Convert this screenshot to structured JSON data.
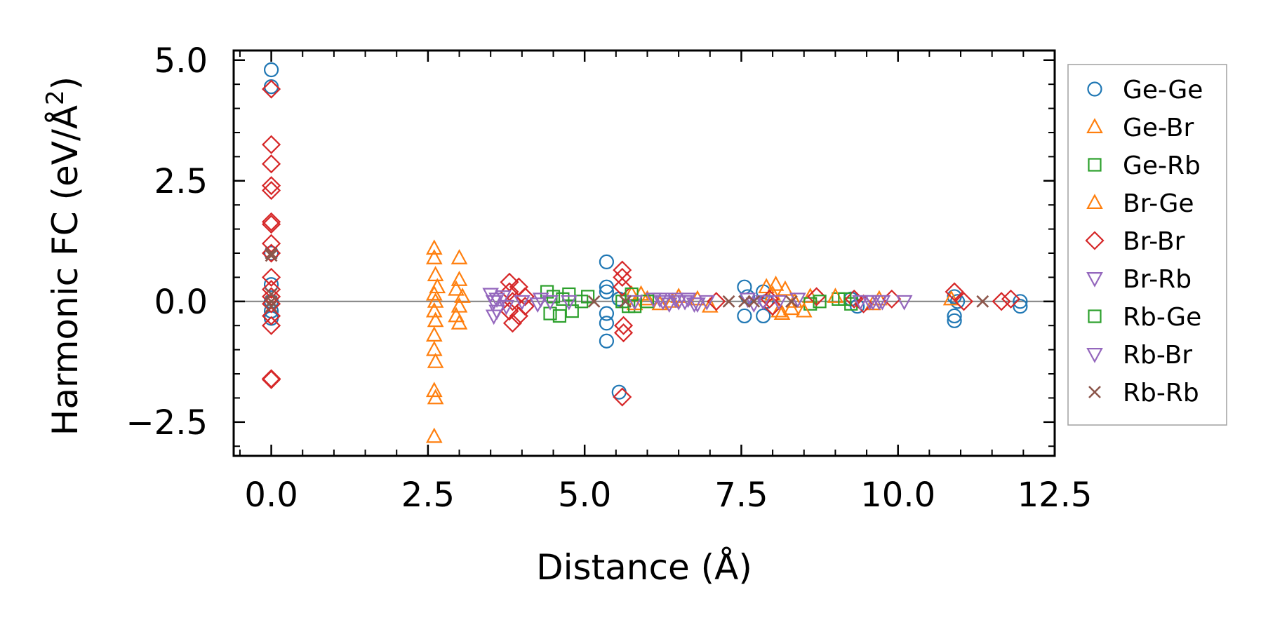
{
  "chart_data": {
    "type": "scatter",
    "xlabel": "Distance (Å)",
    "ylabel": "Harmonic FC (eV/Å²)",
    "xlabel_text": "Distance (Å)",
    "ylabel_main": "Harmonic FC (eV/Å",
    "ylabel_sup": "2",
    "ylabel_close": ")",
    "xlim": [
      -0.6,
      12.5
    ],
    "ylim": [
      -3.2,
      5.2
    ],
    "xticks": [
      0.0,
      2.5,
      5.0,
      7.5,
      10.0,
      12.5
    ],
    "xtick_labels": [
      "0.0",
      "2.5",
      "5.0",
      "7.5",
      "10.0",
      "12.5"
    ],
    "yticks": [
      -2.5,
      0.0,
      2.5,
      5.0
    ],
    "ytick_labels": [
      "−2.5",
      "0.0",
      "2.5",
      "5.0"
    ],
    "zero_line": 0,
    "legend_position": "right",
    "series": [
      {
        "name": "Ge-Ge",
        "marker": "circle",
        "color": "#1f77b4",
        "points": [
          [
            0,
            4.8
          ],
          [
            0,
            4.45
          ],
          [
            0,
            1.0
          ],
          [
            0,
            0.35
          ],
          [
            0,
            0
          ],
          [
            0,
            -0.2
          ],
          [
            0,
            -0.35
          ],
          [
            5.35,
            0.82
          ],
          [
            5.35,
            0.3
          ],
          [
            5.35,
            0.2
          ],
          [
            5.35,
            -0.25
          ],
          [
            5.35,
            -0.45
          ],
          [
            5.35,
            -0.82
          ],
          [
            5.55,
            -1.88
          ],
          [
            5.55,
            0.05
          ],
          [
            7.55,
            0.3
          ],
          [
            7.55,
            -0.3
          ],
          [
            7.6,
            0.1
          ],
          [
            7.85,
            0.2
          ],
          [
            7.85,
            -0.3
          ],
          [
            7.9,
            0.0
          ],
          [
            9.25,
            0.05
          ],
          [
            9.35,
            -0.1
          ],
          [
            10.9,
            0.1
          ],
          [
            10.9,
            -0.3
          ],
          [
            10.9,
            -0.4
          ],
          [
            10.95,
            0.0
          ],
          [
            11.95,
            0.0
          ],
          [
            11.95,
            -0.1
          ]
        ]
      },
      {
        "name": "Ge-Br",
        "marker": "triangle-up",
        "color": "#ff7f0e",
        "points": [
          [
            2.6,
            1.1
          ],
          [
            2.6,
            0.9
          ],
          [
            2.62,
            0.55
          ],
          [
            2.65,
            0.3
          ],
          [
            2.6,
            0.15
          ],
          [
            2.62,
            0.0
          ],
          [
            2.6,
            -0.2
          ],
          [
            2.62,
            -0.4
          ],
          [
            2.6,
            -0.7
          ],
          [
            2.6,
            -1.0
          ],
          [
            2.62,
            -1.25
          ],
          [
            2.6,
            -1.85
          ],
          [
            2.62,
            -2.0
          ],
          [
            2.6,
            -2.8
          ],
          [
            3.0,
            0.9
          ],
          [
            3.0,
            0.45
          ],
          [
            2.95,
            0.25
          ],
          [
            3.05,
            0.1
          ],
          [
            3.0,
            -0.1
          ],
          [
            2.95,
            -0.3
          ],
          [
            3.0,
            -0.45
          ],
          [
            5.9,
            0.15
          ],
          [
            6.0,
            0.05
          ],
          [
            6.2,
            -0.05
          ],
          [
            6.5,
            0.1
          ],
          [
            8.05,
            0.35
          ],
          [
            8.1,
            -0.2
          ],
          [
            8.2,
            0.25
          ],
          [
            8.3,
            -0.15
          ],
          [
            8.6,
            0.1
          ],
          [
            9.7,
            0.05
          ],
          [
            10.85,
            0.05
          ]
        ]
      },
      {
        "name": "Ge-Rb",
        "marker": "square",
        "color": "#2ca02c",
        "points": [
          [
            4.4,
            0.2
          ],
          [
            4.45,
            -0.25
          ],
          [
            4.5,
            0.1
          ],
          [
            4.6,
            -0.3
          ],
          [
            4.65,
            0.05
          ],
          [
            4.75,
            0.15
          ],
          [
            4.8,
            -0.2
          ],
          [
            4.95,
            0.0
          ],
          [
            5.05,
            0.1
          ],
          [
            5.6,
            0.0
          ],
          [
            5.7,
            -0.1
          ],
          [
            8.6,
            -0.05
          ],
          [
            9.05,
            0.05
          ],
          [
            9.25,
            -0.05
          ]
        ]
      },
      {
        "name": "Br-Ge",
        "marker": "triangle-up",
        "color": "#ff7f0e",
        "points": [
          [
            5.75,
            0.15
          ],
          [
            5.8,
            -0.05
          ],
          [
            6.4,
            0.0
          ],
          [
            6.8,
            0.05
          ],
          [
            7.0,
            -0.1
          ],
          [
            7.9,
            0.3
          ],
          [
            8.0,
            0.15
          ],
          [
            8.15,
            -0.25
          ],
          [
            8.35,
            0.0
          ],
          [
            8.5,
            -0.2
          ],
          [
            9.0,
            0.1
          ],
          [
            9.6,
            -0.05
          ]
        ]
      },
      {
        "name": "Br-Br",
        "marker": "diamond",
        "color": "#d62728",
        "points": [
          [
            0,
            4.4
          ],
          [
            0,
            3.25
          ],
          [
            0,
            2.85
          ],
          [
            0,
            2.4
          ],
          [
            0,
            2.3
          ],
          [
            0,
            1.65
          ],
          [
            0,
            1.6
          ],
          [
            0,
            1.2
          ],
          [
            0,
            1.0
          ],
          [
            0,
            0.5
          ],
          [
            0,
            0.25
          ],
          [
            0,
            0.1
          ],
          [
            0,
            -0.05
          ],
          [
            0,
            -0.3
          ],
          [
            0,
            -0.5
          ],
          [
            0,
            -1.6
          ],
          [
            0,
            -1.62
          ],
          [
            3.8,
            0.4
          ],
          [
            3.8,
            0.2
          ],
          [
            3.85,
            0.0
          ],
          [
            3.8,
            -0.2
          ],
          [
            3.85,
            -0.45
          ],
          [
            3.95,
            0.3
          ],
          [
            3.95,
            -0.3
          ],
          [
            4.05,
            0.1
          ],
          [
            4.05,
            -0.1
          ],
          [
            5.6,
            0.65
          ],
          [
            5.6,
            0.5
          ],
          [
            5.6,
            0.3
          ],
          [
            5.62,
            -0.5
          ],
          [
            5.62,
            -0.65
          ],
          [
            5.6,
            -1.98
          ],
          [
            7.1,
            0.0
          ],
          [
            7.95,
            0.05
          ],
          [
            8.0,
            -0.1
          ],
          [
            8.7,
            0.1
          ],
          [
            9.3,
            0.05
          ],
          [
            9.45,
            -0.05
          ],
          [
            9.9,
            0.05
          ],
          [
            10.9,
            0.2
          ],
          [
            11.05,
            0.0
          ],
          [
            11.65,
            0.0
          ],
          [
            11.8,
            0.05
          ]
        ]
      },
      {
        "name": "Br-Rb",
        "marker": "triangle-down",
        "color": "#9467bd",
        "points": [
          [
            3.5,
            0.15
          ],
          [
            3.55,
            0.0
          ],
          [
            3.6,
            -0.2
          ],
          [
            3.55,
            -0.3
          ],
          [
            3.7,
            0.1
          ],
          [
            3.75,
            -0.1
          ],
          [
            4.3,
            0.05
          ],
          [
            4.45,
            0.0
          ],
          [
            6.2,
            0.05
          ],
          [
            6.35,
            -0.05
          ],
          [
            6.5,
            0.0
          ],
          [
            6.65,
            0.05
          ],
          [
            6.8,
            -0.05
          ],
          [
            7.6,
            0.05
          ],
          [
            7.7,
            -0.05
          ],
          [
            9.55,
            0.0
          ],
          [
            9.7,
            0.0
          ],
          [
            10.1,
            0.0
          ]
        ]
      },
      {
        "name": "Rb-Ge",
        "marker": "square",
        "color": "#2ca02c",
        "points": [
          [
            5.75,
            0.15
          ],
          [
            5.8,
            -0.1
          ],
          [
            6.0,
            0.0
          ],
          [
            8.75,
            0.0
          ],
          [
            9.15,
            0.05
          ]
        ]
      },
      {
        "name": "Rb-Br",
        "marker": "triangle-down",
        "color": "#9467bd",
        "points": [
          [
            3.6,
            0.05
          ],
          [
            4.0,
            0.0
          ],
          [
            4.25,
            -0.05
          ],
          [
            4.75,
            0.0
          ],
          [
            5.8,
            0.0
          ],
          [
            6.1,
            0.05
          ],
          [
            6.25,
            0.0
          ],
          [
            6.45,
            0.05
          ],
          [
            6.6,
            0.0
          ],
          [
            6.75,
            -0.05
          ],
          [
            6.95,
            0.0
          ],
          [
            7.85,
            0.0
          ],
          [
            8.1,
            0.0
          ],
          [
            8.4,
            0.05
          ],
          [
            9.4,
            0.0
          ],
          [
            9.6,
            0.0
          ],
          [
            9.75,
            0.0
          ]
        ]
      },
      {
        "name": "Rb-Rb",
        "marker": "x",
        "color": "#8c564b",
        "points": [
          [
            0,
            1.0
          ],
          [
            0,
            0.95
          ],
          [
            0,
            0.15
          ],
          [
            0,
            0.0
          ],
          [
            0,
            -0.1
          ],
          [
            5.15,
            0.0
          ],
          [
            5.65,
            0.0
          ],
          [
            7.3,
            0.0
          ],
          [
            7.55,
            0.0
          ],
          [
            7.7,
            0.0
          ],
          [
            8.3,
            0.0
          ],
          [
            11.35,
            0.0
          ]
        ]
      }
    ]
  }
}
